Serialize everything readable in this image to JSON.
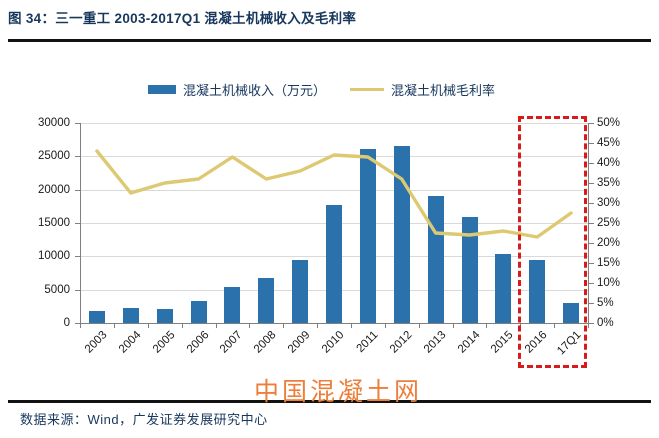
{
  "header": {
    "title": "图 34：三一重工 2003-2017Q1 混凝土机械收入及毛利率"
  },
  "legend": {
    "revenue": "混凝土机械收入（万元）",
    "margin": "混凝土机械毛利率"
  },
  "colors": {
    "text_navy": "#17375d",
    "bar_blue": "#2b71ab",
    "line_yellow": "#ddc972",
    "highlight_red": "#d91a1a",
    "watermark_orange": "#ed7f3b",
    "gridline_gray": "#d9d9d9",
    "axis_gray": "#7f7f7f"
  },
  "chart_data": {
    "type": "bar",
    "title": "三一重工 2003-2017Q1 混凝土机械收入及毛利率",
    "categories": [
      "2003",
      "2004",
      "2005",
      "2006",
      "2007",
      "2008",
      "2009",
      "2010",
      "2011",
      "2012",
      "2013",
      "2014",
      "2015",
      "2016",
      "17Q1"
    ],
    "series": [
      {
        "name": "混凝土机械收入（万元）",
        "type": "bar",
        "axis": "left",
        "color": "#2b71ab",
        "values": [
          1800,
          2300,
          2100,
          3300,
          5400,
          6700,
          9400,
          17700,
          26100,
          26500,
          19000,
          15900,
          10400,
          9400,
          3000
        ]
      },
      {
        "name": "混凝土机械毛利率",
        "type": "line",
        "axis": "right",
        "color": "#ddc972",
        "values": [
          43,
          32.5,
          35,
          36,
          41.5,
          36,
          38,
          42,
          41.5,
          36,
          22.5,
          22,
          23,
          21.5,
          27.5
        ]
      }
    ],
    "left_axis": {
      "min": 0,
      "max": 30000,
      "step": 5000,
      "ticks": [
        "30000",
        "25000",
        "20000",
        "15000",
        "10000",
        "5000",
        "0"
      ]
    },
    "right_axis": {
      "min": 0,
      "max": 50,
      "step": 5,
      "ticks": [
        "50%",
        "45%",
        "40%",
        "35%",
        "30%",
        "25%",
        "20%",
        "15%",
        "10%",
        "5%",
        "0%"
      ]
    },
    "grid": "horizontal",
    "legend_position": "top",
    "highlight_box": {
      "categories": [
        "2016",
        "17Q1"
      ],
      "color": "#d91a1a",
      "style": "dashed"
    }
  },
  "watermark": {
    "text": "中国混凝土网",
    "color": "#ed7f3b"
  },
  "footer": {
    "source": "数据来源：Wind，广发证券发展研究中心"
  }
}
